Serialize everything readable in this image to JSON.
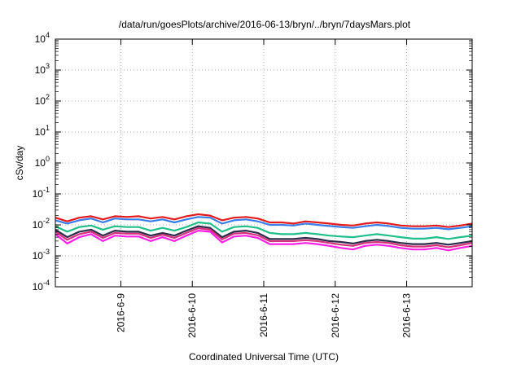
{
  "chart_data": {
    "type": "line",
    "title": "/data/run/goesPlots/archive/2016-06-13/bryn/../bryn/7daysMars.plot",
    "xlabel": "Coordinated Universal Time (UTC)",
    "ylabel": "cSv/day",
    "y_scale": "log",
    "ylim": [
      0.0001,
      10000
    ],
    "xlim": [
      "2016-06-08T02:00",
      "2016-06-13T22:00"
    ],
    "y_ticks": [
      {
        "base": "10",
        "exp": "-4",
        "value": 0.0001
      },
      {
        "base": "10",
        "exp": "-3",
        "value": 0.001
      },
      {
        "base": "10",
        "exp": "-2",
        "value": 0.01
      },
      {
        "base": "10",
        "exp": "-1",
        "value": 0.1
      },
      {
        "base": "10",
        "exp": "0",
        "value": 1
      },
      {
        "base": "10",
        "exp": "1",
        "value": 10
      },
      {
        "base": "10",
        "exp": "2",
        "value": 100
      },
      {
        "base": "10",
        "exp": "3",
        "value": 1000
      },
      {
        "base": "10",
        "exp": "4",
        "value": 10000
      }
    ],
    "x_ticks": [
      {
        "label": "2016-6-9",
        "value": "2016-06-09T00:00"
      },
      {
        "label": "2016-6-10",
        "value": "2016-06-10T00:00"
      },
      {
        "label": "2016-6-11",
        "value": "2016-06-11T00:00"
      },
      {
        "label": "2016-6-12",
        "value": "2016-06-12T00:00"
      },
      {
        "label": "2016-6-13",
        "value": "2016-06-13T00:00"
      }
    ],
    "grid": true,
    "legend": "none",
    "x": [
      "2016-06-08T02:00",
      "2016-06-08T06:00",
      "2016-06-08T10:00",
      "2016-06-08T14:00",
      "2016-06-08T18:00",
      "2016-06-08T22:00",
      "2016-06-09T02:00",
      "2016-06-09T06:00",
      "2016-06-09T10:00",
      "2016-06-09T14:00",
      "2016-06-09T18:00",
      "2016-06-09T22:00",
      "2016-06-10T02:00",
      "2016-06-10T06:00",
      "2016-06-10T10:00",
      "2016-06-10T14:00",
      "2016-06-10T18:00",
      "2016-06-10T22:00",
      "2016-06-11T02:00",
      "2016-06-11T06:00",
      "2016-06-11T10:00",
      "2016-06-11T14:00",
      "2016-06-11T18:00",
      "2016-06-11T22:00",
      "2016-06-12T02:00",
      "2016-06-12T06:00",
      "2016-06-12T10:00",
      "2016-06-12T14:00",
      "2016-06-12T18:00",
      "2016-06-12T22:00",
      "2016-06-13T02:00",
      "2016-06-13T06:00",
      "2016-06-13T10:00",
      "2016-06-13T14:00",
      "2016-06-13T18:00",
      "2016-06-13T22:00"
    ],
    "series": [
      {
        "color": "#e41a1c",
        "values": [
          0.017,
          0.013,
          0.017,
          0.019,
          0.015,
          0.019,
          0.018,
          0.019,
          0.016,
          0.018,
          0.015,
          0.019,
          0.022,
          0.02,
          0.014,
          0.017,
          0.018,
          0.016,
          0.012,
          0.012,
          0.011,
          0.013,
          0.012,
          0.011,
          0.01,
          0.0095,
          0.011,
          0.012,
          0.011,
          0.0095,
          0.009,
          0.009,
          0.0095,
          0.0085,
          0.0095,
          0.011
        ]
      },
      {
        "color": "#377eeb",
        "values": [
          0.014,
          0.011,
          0.014,
          0.016,
          0.012,
          0.016,
          0.015,
          0.015,
          0.013,
          0.015,
          0.012,
          0.015,
          0.018,
          0.017,
          0.011,
          0.014,
          0.015,
          0.013,
          0.01,
          0.01,
          0.0095,
          0.011,
          0.01,
          0.0092,
          0.0085,
          0.008,
          0.009,
          0.01,
          0.0092,
          0.008,
          0.0075,
          0.0075,
          0.008,
          0.0072,
          0.008,
          0.009
        ]
      },
      {
        "color": "#1fbf8a",
        "values": [
          0.009,
          0.006,
          0.0085,
          0.0095,
          0.007,
          0.009,
          0.0085,
          0.0085,
          0.0065,
          0.008,
          0.0065,
          0.0085,
          0.012,
          0.011,
          0.006,
          0.0085,
          0.009,
          0.008,
          0.0055,
          0.005,
          0.005,
          0.0055,
          0.005,
          0.0045,
          0.0042,
          0.004,
          0.0045,
          0.005,
          0.0045,
          0.004,
          0.0036,
          0.0036,
          0.004,
          0.0035,
          0.004,
          0.0045
        ]
      },
      {
        "color": "#2b2b4a",
        "values": [
          0.007,
          0.004,
          0.006,
          0.007,
          0.0045,
          0.0065,
          0.006,
          0.006,
          0.0045,
          0.0055,
          0.0045,
          0.0065,
          0.009,
          0.008,
          0.004,
          0.006,
          0.0065,
          0.0055,
          0.0035,
          0.0035,
          0.0035,
          0.0038,
          0.0035,
          0.003,
          0.0028,
          0.0025,
          0.003,
          0.0033,
          0.003,
          0.0026,
          0.0024,
          0.0024,
          0.0026,
          0.0023,
          0.0026,
          0.003
        ]
      },
      {
        "color": "#d7307a",
        "values": [
          0.006,
          0.0033,
          0.005,
          0.006,
          0.0038,
          0.0055,
          0.0052,
          0.0052,
          0.0038,
          0.0048,
          0.0038,
          0.0055,
          0.0078,
          0.007,
          0.0034,
          0.0052,
          0.0055,
          0.0046,
          0.003,
          0.003,
          0.003,
          0.0032,
          0.003,
          0.0026,
          0.0023,
          0.0021,
          0.0026,
          0.0028,
          0.0026,
          0.0022,
          0.002,
          0.002,
          0.0022,
          0.0019,
          0.0022,
          0.0026
        ]
      },
      {
        "color": "#ff1fe6",
        "values": [
          0.005,
          0.0025,
          0.004,
          0.005,
          0.003,
          0.0045,
          0.0042,
          0.0042,
          0.003,
          0.004,
          0.003,
          0.0045,
          0.0065,
          0.006,
          0.0027,
          0.0042,
          0.0045,
          0.0038,
          0.0024,
          0.0024,
          0.0024,
          0.0026,
          0.0024,
          0.0021,
          0.0018,
          0.0016,
          0.0021,
          0.0023,
          0.0021,
          0.0018,
          0.0016,
          0.0016,
          0.0018,
          0.0015,
          0.0018,
          0.0021
        ]
      }
    ]
  }
}
